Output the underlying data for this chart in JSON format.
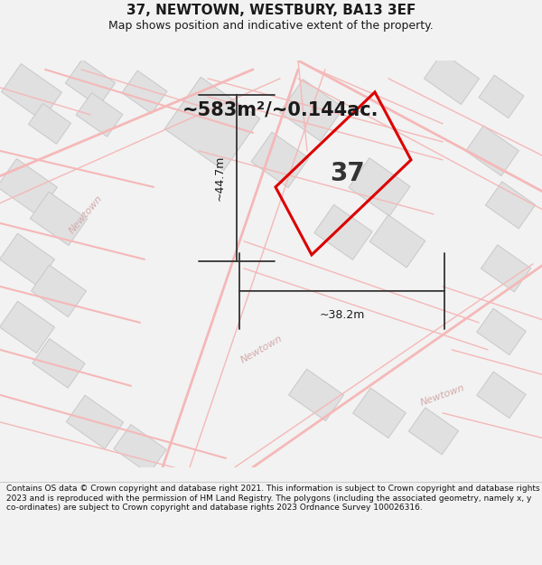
{
  "title": "37, NEWTOWN, WESTBURY, BA13 3EF",
  "subtitle": "Map shows position and indicative extent of the property.",
  "area_text": "~583m²/~0.144ac.",
  "dim_h": "~44.7m",
  "dim_w": "~38.2m",
  "label_37": "37",
  "footer": "Contains OS data © Crown copyright and database right 2021. This information is subject to Crown copyright and database rights 2023 and is reproduced with the permission of HM Land Registry. The polygons (including the associated geometry, namely x, y co-ordinates) are subject to Crown copyright and database rights 2023 Ordnance Survey 100026316.",
  "bg_color": "#f2f2f2",
  "map_bg": "#ffffff",
  "road_color": "#f5b8b8",
  "building_fill": "#e0e0e0",
  "building_edge": "#c8c8c8",
  "plot_edge": "#dd0000",
  "newtown_color": "#d4aaaa",
  "text_dark": "#1a1a1a",
  "footer_color": "#111111",
  "title_fontsize": 11,
  "subtitle_fontsize": 9,
  "area_fontsize": 15,
  "label37_fontsize": 20,
  "dim_fontsize": 9,
  "newtown_fontsize": 8
}
